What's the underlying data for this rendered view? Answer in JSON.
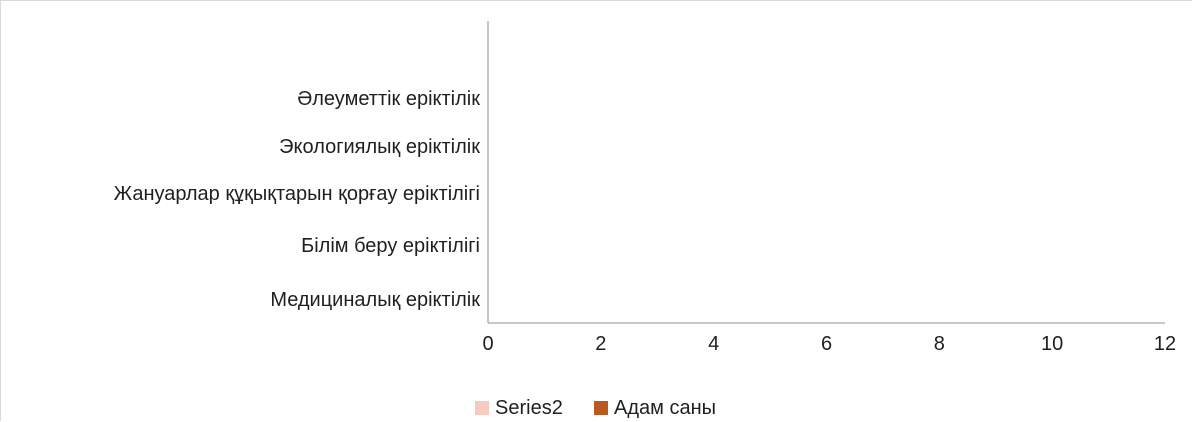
{
  "chart_data": {
    "type": "bar",
    "orientation": "horizontal",
    "title": "",
    "xlabel": "",
    "ylabel": "",
    "categories": [
      "Медициналық еріктілік",
      "Білім беру еріктілігі",
      "Жануарлар құқықтарын қорғау еріктілігі",
      "Экологиялық еріктілік",
      "Әлеуметтік еріктілік"
    ],
    "series": [
      {
        "name": "Series2",
        "values": [
          0,
          0,
          0,
          0,
          0
        ],
        "color": "#f8cbbf"
      },
      {
        "name": "Адам саны",
        "values": [
          0,
          0,
          0,
          0,
          0
        ],
        "color": "#b85a1f"
      }
    ],
    "xlim": [
      0,
      12
    ],
    "xticks": [
      "0",
      "2",
      "4",
      "6",
      "8",
      "10",
      "12"
    ],
    "grid": false,
    "legend_position": "bottom",
    "axis_color": "#a6a6a6",
    "text_color": "#1f1f1f"
  }
}
